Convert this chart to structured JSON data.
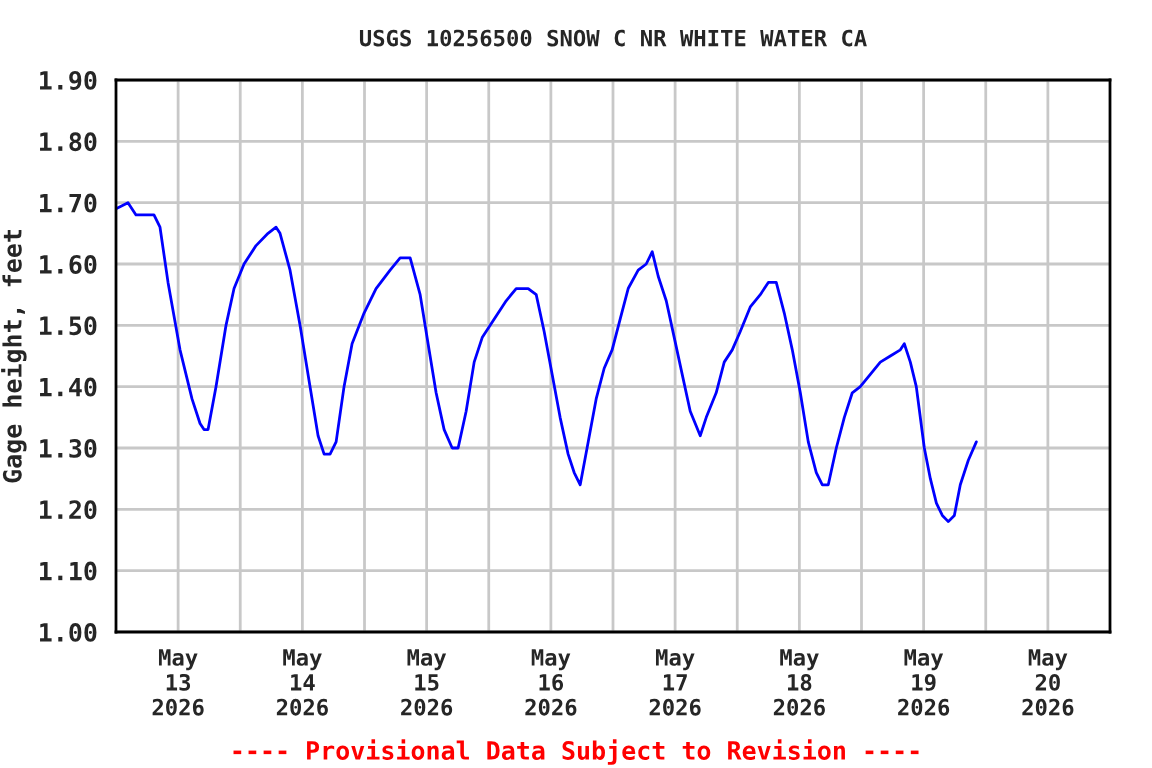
{
  "chart_data": {
    "type": "line",
    "title": "USGS 10256500 SNOW C NR WHITE WATER CA",
    "ylabel": "Gage height, feet",
    "x": [
      "2026-05-13T00:00",
      "2026-05-13T02:19",
      "2026-05-13T03:52",
      "2026-05-13T07:20",
      "2026-05-13T08:30",
      "2026-05-13T10:03",
      "2026-05-13T12:22",
      "2026-05-13T14:41",
      "2026-05-13T16:14",
      "2026-05-13T17:00",
      "2026-05-13T17:47",
      "2026-05-13T19:19",
      "2026-05-13T21:15",
      "2026-05-13T22:48",
      "2026-05-14T00:44",
      "2026-05-14T03:03",
      "2026-05-14T05:22",
      "2026-05-14T06:55",
      "2026-05-14T07:41",
      "2026-05-14T09:37",
      "2026-05-14T11:33",
      "2026-05-14T13:29",
      "2026-05-14T15:02",
      "2026-05-14T16:12",
      "2026-05-14T17:21",
      "2026-05-14T18:31",
      "2026-05-14T20:03",
      "2026-05-14T21:36",
      "2026-05-14T23:55",
      "2026-05-15T02:14",
      "2026-05-15T04:57",
      "2026-05-15T06:53",
      "2026-05-15T08:49",
      "2026-05-15T10:45",
      "2026-05-15T12:17",
      "2026-05-15T13:50",
      "2026-05-15T15:23",
      "2026-05-15T16:56",
      "2026-05-15T18:05",
      "2026-05-15T19:38",
      "2026-05-15T21:11",
      "2026-05-15T22:44",
      "2026-05-16T01:02",
      "2026-05-16T03:22",
      "2026-05-16T05:18",
      "2026-05-16T07:37",
      "2026-05-16T09:10",
      "2026-05-16T10:42",
      "2026-05-16T12:15",
      "2026-05-16T13:47",
      "2026-05-16T15:20",
      "2026-05-16T16:30",
      "2026-05-16T17:40",
      "2026-05-16T19:13",
      "2026-05-16T20:45",
      "2026-05-16T22:18",
      "2026-05-16T23:50",
      "2026-05-17T01:23",
      "2026-05-17T02:56",
      "2026-05-17T04:52",
      "2026-05-17T06:25",
      "2026-05-17T07:35",
      "2026-05-17T08:44",
      "2026-05-17T10:17",
      "2026-05-17T11:50",
      "2026-05-17T13:22",
      "2026-05-17T14:55",
      "2026-05-17T16:51",
      "2026-05-17T18:01",
      "2026-05-17T19:56",
      "2026-05-17T21:29",
      "2026-05-17T23:02",
      "2026-05-18T00:35",
      "2026-05-18T02:31",
      "2026-05-18T04:27",
      "2026-05-18T06:00",
      "2026-05-18T07:32",
      "2026-05-18T09:05",
      "2026-05-18T10:38",
      "2026-05-18T12:11",
      "2026-05-18T13:43",
      "2026-05-18T15:16",
      "2026-05-18T16:26",
      "2026-05-18T17:35",
      "2026-05-18T19:08",
      "2026-05-18T20:41",
      "2026-05-18T22:13",
      "2026-05-18T23:46",
      "2026-05-19T01:42",
      "2026-05-19T03:38",
      "2026-05-19T05:34",
      "2026-05-19T07:30",
      "2026-05-19T08:16",
      "2026-05-19T09:26",
      "2026-05-19T10:35",
      "2026-05-19T12:08",
      "2026-05-19T13:18",
      "2026-05-19T14:28",
      "2026-05-19T15:37",
      "2026-05-19T16:46",
      "2026-05-19T17:56",
      "2026-05-19T19:05",
      "2026-05-19T20:38",
      "2026-05-19T22:11"
    ],
    "series": [
      {
        "color": "#0000ff",
        "values": [
          1.69,
          1.7,
          1.68,
          1.68,
          1.66,
          1.57,
          1.46,
          1.38,
          1.34,
          1.33,
          1.33,
          1.4,
          1.5,
          1.56,
          1.6,
          1.63,
          1.65,
          1.66,
          1.65,
          1.59,
          1.5,
          1.4,
          1.32,
          1.29,
          1.29,
          1.31,
          1.4,
          1.47,
          1.52,
          1.56,
          1.59,
          1.61,
          1.61,
          1.55,
          1.47,
          1.39,
          1.33,
          1.3,
          1.3,
          1.36,
          1.44,
          1.48,
          1.51,
          1.54,
          1.56,
          1.56,
          1.55,
          1.49,
          1.42,
          1.35,
          1.29,
          1.26,
          1.24,
          1.31,
          1.38,
          1.43,
          1.46,
          1.51,
          1.56,
          1.59,
          1.6,
          1.62,
          1.58,
          1.54,
          1.48,
          1.42,
          1.36,
          1.32,
          1.35,
          1.39,
          1.44,
          1.46,
          1.49,
          1.53,
          1.55,
          1.57,
          1.57,
          1.52,
          1.46,
          1.39,
          1.31,
          1.26,
          1.24,
          1.24,
          1.3,
          1.35,
          1.39,
          1.4,
          1.42,
          1.44,
          1.45,
          1.46,
          1.47,
          1.44,
          1.4,
          1.3,
          1.25,
          1.21,
          1.19,
          1.18,
          1.19,
          1.24,
          1.28,
          1.31
        ]
      }
    ],
    "xlim": [
      "2026-05-13T00:00",
      "2026-05-21T00:00"
    ],
    "xticks": [
      {
        "value": "2026-05-13T12:00",
        "label": "May\n13\n2026"
      },
      {
        "value": "2026-05-14T00:00",
        "label": null
      },
      {
        "value": "2026-05-14T12:00",
        "label": "May\n14\n2026"
      },
      {
        "value": "2026-05-15T00:00",
        "label": null
      },
      {
        "value": "2026-05-15T12:00",
        "label": "May\n15\n2026"
      },
      {
        "value": "2026-05-16T00:00",
        "label": null
      },
      {
        "value": "2026-05-16T12:00",
        "label": "May\n16\n2026"
      },
      {
        "value": "2026-05-17T00:00",
        "label": null
      },
      {
        "value": "2026-05-17T12:00",
        "label": "May\n17\n2026"
      },
      {
        "value": "2026-05-18T00:00",
        "label": null
      },
      {
        "value": "2026-05-18T12:00",
        "label": "May\n18\n2026"
      },
      {
        "value": "2026-05-19T00:00",
        "label": null
      },
      {
        "value": "2026-05-19T12:00",
        "label": "May\n19\n2026"
      },
      {
        "value": "2026-05-20T00:00",
        "label": null
      },
      {
        "value": "2026-05-20T12:00",
        "label": "May\n20\n2026"
      }
    ],
    "ylim": [
      1.0,
      1.9
    ],
    "yticks": [
      {
        "value": 1.0,
        "label": "1.00"
      },
      {
        "value": 1.1,
        "label": "1.10"
      },
      {
        "value": 1.2,
        "label": "1.20"
      },
      {
        "value": 1.3,
        "label": "1.30"
      },
      {
        "value": 1.4,
        "label": "1.40"
      },
      {
        "value": 1.5,
        "label": "1.50"
      },
      {
        "value": 1.6,
        "label": "1.60"
      },
      {
        "value": 1.7,
        "label": "1.70"
      },
      {
        "value": 1.8,
        "label": "1.80"
      },
      {
        "value": 1.9,
        "label": "1.90"
      }
    ],
    "grid": true,
    "annotations": [
      "---- Provisional Data Subject to Revision ----"
    ]
  }
}
